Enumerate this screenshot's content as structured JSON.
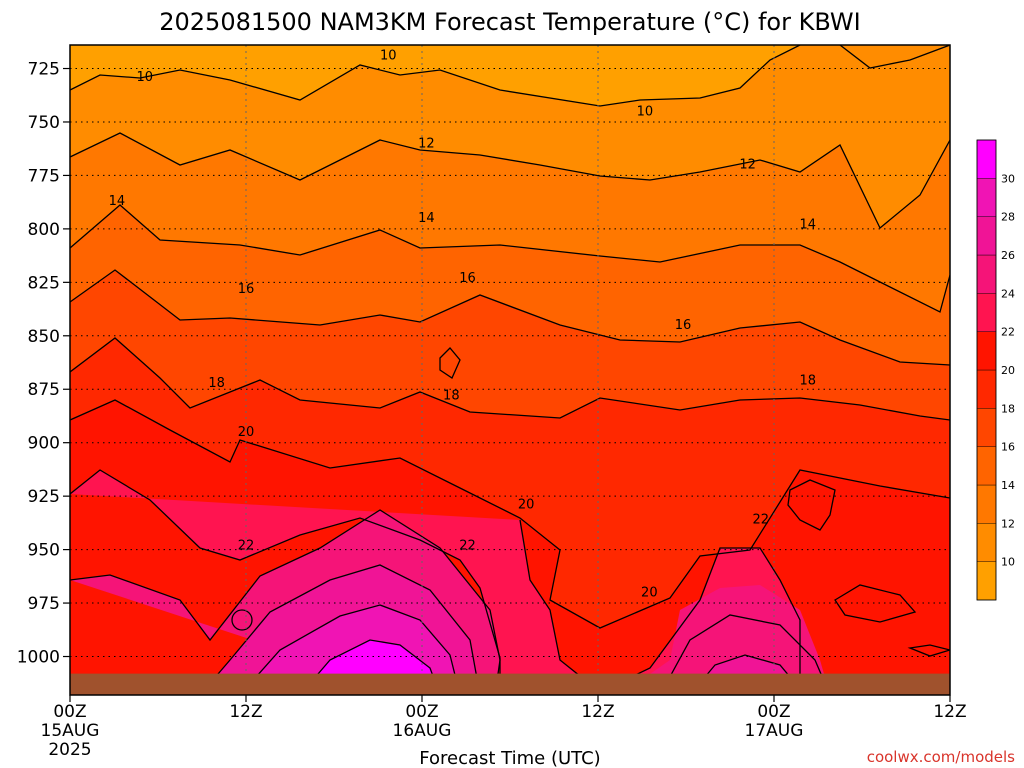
{
  "chart_data": {
    "type": "heatmap",
    "title": "2025081500 NAM3KM Forecast Temperature (°C) for KBWI",
    "xlabel": "Forecast Time (UTC)",
    "credit": "coolwx.com/models",
    "x_ticks": [
      {
        "hour": 0,
        "label": "00Z",
        "sub1": "15AUG",
        "sub2": "2025"
      },
      {
        "hour": 12,
        "label": "12Z",
        "sub1": "",
        "sub2": ""
      },
      {
        "hour": 24,
        "label": "00Z",
        "sub1": "16AUG",
        "sub2": ""
      },
      {
        "hour": 36,
        "label": "12Z",
        "sub1": "",
        "sub2": ""
      },
      {
        "hour": 48,
        "label": "00Z",
        "sub1": "17AUG",
        "sub2": ""
      },
      {
        "hour": 60,
        "label": "12Z",
        "sub1": "",
        "sub2": ""
      }
    ],
    "xlim": [
      0,
      60
    ],
    "y_ticks": [
      725,
      750,
      775,
      800,
      825,
      850,
      875,
      900,
      925,
      950,
      975,
      1000
    ],
    "ylim": [
      1018,
      714
    ],
    "y_unit": "hPa",
    "surface_pressure": 1008,
    "colorbar": {
      "levels": [
        8,
        10,
        12,
        14,
        16,
        18,
        20,
        22,
        24,
        26,
        28,
        30,
        32
      ],
      "labels": [
        10,
        12,
        14,
        16,
        18,
        20,
        22,
        24,
        26,
        28,
        30
      ],
      "colors": [
        "#FFA000",
        "#FF8C00",
        "#FF7800",
        "#FF6400",
        "#FF4600",
        "#FF2800",
        "#FF1400",
        "#FF1450",
        "#F51478",
        "#F01496",
        "#F014B4",
        "#FF00FF"
      ]
    },
    "contour_labels": [
      {
        "value": "10",
        "hour": 5.1,
        "p": 729
      },
      {
        "value": "10",
        "hour": 21.7,
        "p": 719
      },
      {
        "value": "10",
        "hour": 39.2,
        "p": 745
      },
      {
        "value": "12",
        "hour": 24.3,
        "p": 760
      },
      {
        "value": "12",
        "hour": 46.2,
        "p": 770
      },
      {
        "value": "14",
        "hour": 3.2,
        "p": 787
      },
      {
        "value": "14",
        "hour": 24.3,
        "p": 795
      },
      {
        "value": "14",
        "hour": 50.3,
        "p": 798
      },
      {
        "value": "16",
        "hour": 12.0,
        "p": 828
      },
      {
        "value": "16",
        "hour": 27.1,
        "p": 823
      },
      {
        "value": "16",
        "hour": 41.8,
        "p": 845
      },
      {
        "value": "18",
        "hour": 10.0,
        "p": 872
      },
      {
        "value": "18",
        "hour": 26.0,
        "p": 878
      },
      {
        "value": "18",
        "hour": 50.3,
        "p": 871
      },
      {
        "value": "20",
        "hour": 12.0,
        "p": 895
      },
      {
        "value": "20",
        "hour": 31.1,
        "p": 929
      },
      {
        "value": "20",
        "hour": 39.5,
        "p": 970
      },
      {
        "value": "22",
        "hour": 12.0,
        "p": 948
      },
      {
        "value": "22",
        "hour": 27.1,
        "p": 948
      },
      {
        "value": "22",
        "hour": 47.1,
        "p": 936
      }
    ]
  }
}
